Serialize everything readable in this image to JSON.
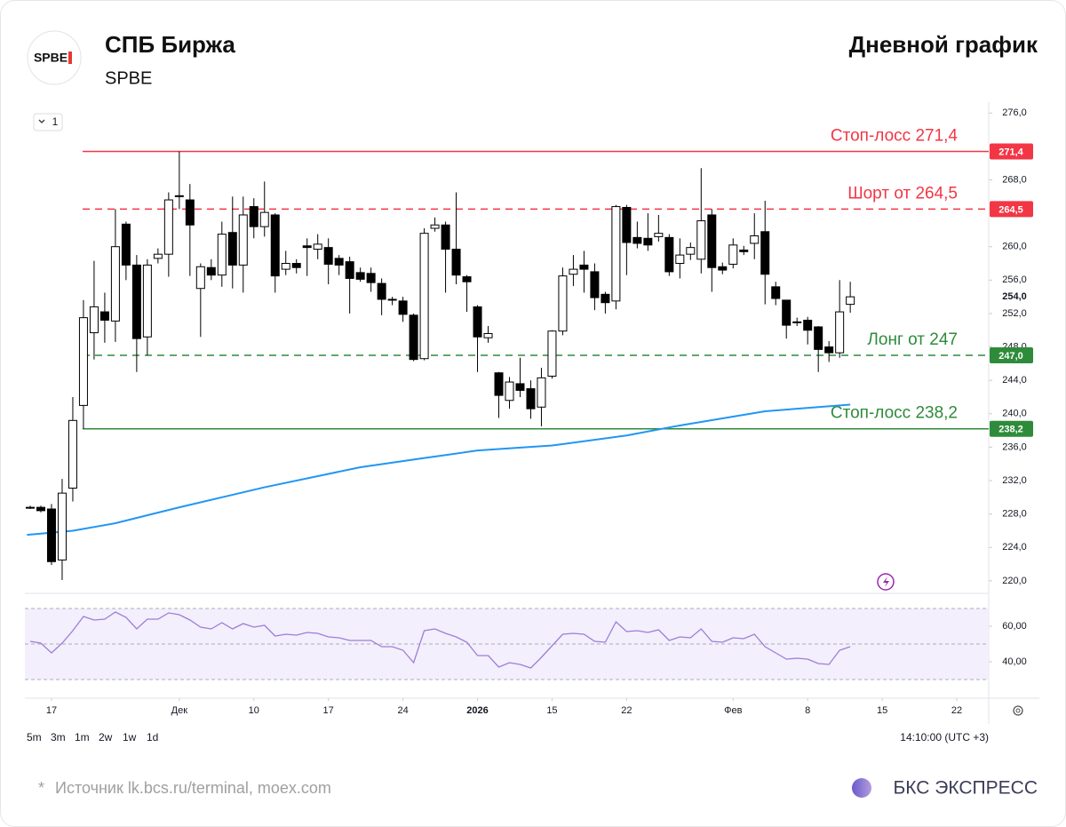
{
  "header": {
    "logo": "SPBE",
    "title": "СПБ Биржа",
    "ticker": "SPBE",
    "chart_kind": "Дневной график"
  },
  "chart_data": {
    "type": "candlestick",
    "interval": "1",
    "ylim": [
      218.5,
      277.3
    ],
    "yticks": [
      {
        "value": 276,
        "label": "276,0"
      },
      {
        "value": 268,
        "label": "268,0"
      },
      {
        "value": 260,
        "label": "260,0"
      },
      {
        "value": 256,
        "label": "256,0"
      },
      {
        "value": 252,
        "label": "252,0"
      },
      {
        "value": 248,
        "label": "248,0"
      },
      {
        "value": 244,
        "label": "244,0"
      },
      {
        "value": 240,
        "label": "240,0"
      },
      {
        "value": 236,
        "label": "236,0"
      },
      {
        "value": 232,
        "label": "232,0"
      },
      {
        "value": 228,
        "label": "228,0"
      },
      {
        "value": 224,
        "label": "224,0"
      },
      {
        "value": 220,
        "label": "220,0"
      }
    ],
    "xlim": [
      -0.5,
      90
    ],
    "xticks": [
      {
        "value": 2,
        "label": "17"
      },
      {
        "value": 14,
        "label": "Дек"
      },
      {
        "value": 21,
        "label": "10"
      },
      {
        "value": 28,
        "label": "17"
      },
      {
        "value": 35,
        "label": "24"
      },
      {
        "value": 42,
        "label": "2026"
      },
      {
        "value": 49,
        "label": "15"
      },
      {
        "value": 56,
        "label": "22"
      },
      {
        "value": 66,
        "label": "Фев"
      },
      {
        "value": 73,
        "label": "8"
      },
      {
        "value": 80,
        "label": "15"
      },
      {
        "value": 87,
        "label": "22"
      }
    ],
    "up_color": "#ffffff",
    "down_color": "#000000",
    "x": [
      0,
      1,
      2,
      3,
      4,
      5,
      6,
      7,
      8,
      9,
      10,
      11,
      12,
      13,
      14,
      15,
      16,
      17,
      18,
      19,
      20,
      21,
      22,
      23,
      24,
      25,
      26,
      27,
      28,
      29,
      30,
      31,
      32,
      33,
      34,
      35,
      36,
      37,
      38,
      39,
      40,
      41,
      42,
      43,
      44,
      45,
      46,
      47,
      48,
      49,
      50,
      51,
      52,
      53,
      54,
      55,
      56,
      57,
      58,
      59,
      60,
      61,
      62,
      63,
      64,
      65,
      66,
      67,
      68,
      69,
      70,
      71,
      72,
      73,
      74,
      75,
      76,
      77
    ],
    "open": [
      228.8,
      228.8,
      228.6,
      222.5,
      231.1,
      241.0,
      249.7,
      252.2,
      251.1,
      262.7,
      257.8,
      249.2,
      258.6,
      259.1,
      266.0,
      265.6,
      255.0,
      257.5,
      256.6,
      261.7,
      257.8,
      264.8,
      262.4,
      263.8,
      257.3,
      258.0,
      260.1,
      259.7,
      259.9,
      258.6,
      258.2,
      256.9,
      256.8,
      255.6,
      253.6,
      253.5,
      251.8,
      246.6,
      262.2,
      262.6,
      259.7,
      256.4,
      252.8,
      249.1,
      244.9,
      241.6,
      243.6,
      243.0,
      240.8,
      244.5,
      249.9,
      256.7,
      257.8,
      257.0,
      254.3,
      253.5,
      264.7,
      261.1,
      261.0,
      261.2,
      261.1,
      258.0,
      259.1,
      258.5,
      263.8,
      257.6,
      257.9,
      259.6,
      260.4,
      261.8,
      255.2,
      253.6,
      250.9,
      251.2,
      250.4,
      248.0,
      247.3,
      253.1
    ],
    "high": [
      229.0,
      229.0,
      229.2,
      232.2,
      242.0,
      253.6,
      258.3,
      254.5,
      264.5,
      263.0,
      259.0,
      258.5,
      259.8,
      266.5,
      271.4,
      267.5,
      258.0,
      258.5,
      263.0,
      266.0,
      266.0,
      265.8,
      267.8,
      264.0,
      259.5,
      258.5,
      261.0,
      261.5,
      261.0,
      259.0,
      258.8,
      257.5,
      257.5,
      256.2,
      254.0,
      254.0,
      252.0,
      262.2,
      263.5,
      263.0,
      266.5,
      256.6,
      253.0,
      250.5,
      245.0,
      244.4,
      246.7,
      244.0,
      245.5,
      250.0,
      257.5,
      259.0,
      259.5,
      258.0,
      254.6,
      265.0,
      265.0,
      263.0,
      264.0,
      263.8,
      261.5,
      261.0,
      260.5,
      269.4,
      264.5,
      258.1,
      261.0,
      260.1,
      264.0,
      265.5,
      255.8,
      253.6,
      251.5,
      251.6,
      250.5,
      248.7,
      256.0,
      255.8
    ],
    "low": [
      228.6,
      228.2,
      221.9,
      220.1,
      229.5,
      238.2,
      246.5,
      248.5,
      248.6,
      256.0,
      245.0,
      247.0,
      258.0,
      256.4,
      264.5,
      256.5,
      249.2,
      256.0,
      255.2,
      255.0,
      254.5,
      261.0,
      261.2,
      254.5,
      256.6,
      256.8,
      256.5,
      258.5,
      255.5,
      256.6,
      252.0,
      255.8,
      254.6,
      251.8,
      253.0,
      251.0,
      246.3,
      246.4,
      261.8,
      254.5,
      255.5,
      252.2,
      245.0,
      248.5,
      239.5,
      240.6,
      242.0,
      239.4,
      238.5,
      244.2,
      249.4,
      255.3,
      254.5,
      252.4,
      252.0,
      252.5,
      256.6,
      259.8,
      259.5,
      260.6,
      256.5,
      256.2,
      258.4,
      256.8,
      254.6,
      256.7,
      257.4,
      259.0,
      258.5,
      253.1,
      253.0,
      249.0,
      250.5,
      248.3,
      245.0,
      246.2,
      246.7,
      252.1
    ],
    "close": [
      228.7,
      228.4,
      222.3,
      230.5,
      239.2,
      251.5,
      252.8,
      251.2,
      260.0,
      257.8,
      249.0,
      257.8,
      259.1,
      265.6,
      266.1,
      262.6,
      257.6,
      256.6,
      261.5,
      257.8,
      263.8,
      262.4,
      264.1,
      256.5,
      258.0,
      257.5,
      259.9,
      260.3,
      257.9,
      257.8,
      256.2,
      256.1,
      255.7,
      253.7,
      253.7,
      251.9,
      246.5,
      261.6,
      262.6,
      259.7,
      256.6,
      255.8,
      249.2,
      249.6,
      242.2,
      243.8,
      242.8,
      240.6,
      244.3,
      249.9,
      256.5,
      257.3,
      257.3,
      253.9,
      253.3,
      264.8,
      260.5,
      260.4,
      260.2,
      261.6,
      257.0,
      259.0,
      259.9,
      263.1,
      257.5,
      257.2,
      260.2,
      259.4,
      261.3,
      256.7,
      253.8,
      250.6,
      251.0,
      250.0,
      247.7,
      247.3,
      252.2,
      254.0
    ],
    "ma": {
      "color": "#2196f3",
      "x": [
        -0.3,
        4,
        8,
        14,
        22,
        31,
        37,
        42,
        49,
        56,
        61,
        69,
        77
      ],
      "values": [
        225.5,
        226.0,
        226.9,
        228.8,
        231.2,
        233.6,
        234.7,
        235.6,
        236.2,
        237.4,
        238.6,
        240.3,
        241.1
      ]
    },
    "last_price": {
      "value": 254,
      "label": "254,0"
    },
    "levels": [
      {
        "value": 271.4,
        "label": "Стоп-лосс 271,4",
        "badge": "271,4",
        "color": "#f23645",
        "style": "solid"
      },
      {
        "value": 264.5,
        "label": "Шорт от 264,5",
        "badge": "264,5",
        "color": "#f23645",
        "style": "dashed"
      },
      {
        "value": 247,
        "label": "Лонг от 247",
        "badge": "247,0",
        "color": "#2e8b3a",
        "style": "dashed"
      },
      {
        "value": 238.2,
        "label": "Стоп-лосс 238,2",
        "badge": "238,2",
        "color": "#2e8b3a",
        "style": "solid"
      }
    ],
    "rsi": {
      "color": "#9c7ed8",
      "ylim": [
        19.5,
        78.5
      ],
      "yticks": [
        {
          "value": 60,
          "label": "60,00"
        },
        {
          "value": 40,
          "label": "40,00"
        }
      ],
      "bands": [
        70,
        50,
        30
      ],
      "values": [
        51.5,
        50.5,
        45,
        50.5,
        57.5,
        65.5,
        63.5,
        64,
        68,
        65,
        58.5,
        64,
        64,
        67.5,
        66.5,
        63.5,
        59.5,
        58.5,
        62,
        58.5,
        61.5,
        59.5,
        60.5,
        54.5,
        55.5,
        55,
        56.5,
        56,
        54,
        53.5,
        52,
        52,
        52,
        48.5,
        48.5,
        46.5,
        39.5,
        57.5,
        58.5,
        56,
        54,
        51,
        43.5,
        43.5,
        37,
        39.5,
        38.5,
        36.5,
        42.5,
        49,
        55.5,
        56,
        55.5,
        51.5,
        51,
        62.5,
        57,
        57.5,
        56.5,
        58,
        52,
        54,
        53.5,
        58.5,
        51.5,
        51,
        53.5,
        53,
        55.5,
        48.5,
        45,
        41.5,
        42,
        41.5,
        39,
        38.5,
        46.5,
        48.5
      ]
    }
  },
  "toolbar": {
    "ranges": [
      "5m",
      "3m",
      "1m",
      "2w",
      "1w",
      "1d"
    ],
    "time": "14:10:00 (UTC +3)"
  },
  "footer": {
    "source_mark": "*",
    "source": "Источник lk.bcs.ru/terminal, moex.com",
    "brand": "БКС ЭКСПРЕСС"
  }
}
